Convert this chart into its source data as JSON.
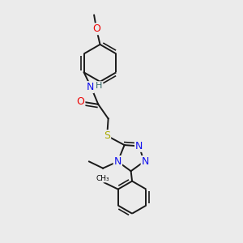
{
  "background_color": "#ebebeb",
  "atom_colors": {
    "C": "#000000",
    "N": "#1010EE",
    "O": "#EE0000",
    "S": "#AAAA00",
    "H": "#336666"
  },
  "bond_color": "#1a1a1a",
  "bond_width": 1.4,
  "font_size_atom": 9,
  "font_size_small": 7.5
}
